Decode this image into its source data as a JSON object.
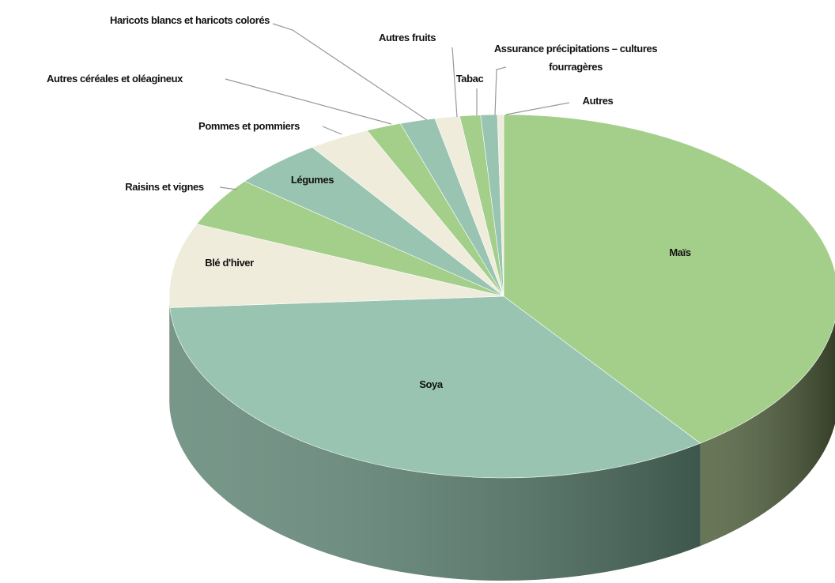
{
  "chart_data": {
    "type": "pie3d",
    "categories": [
      "Maïs",
      "Soya",
      "Blé d'hiver",
      "Raisins et vignes",
      "Légumes",
      "Pommes et pommiers",
      "Autres céréales et oléagineux",
      "Haricots blancs et haricots colorés",
      "Autres fruits",
      "Tabac",
      "Assurance précipitations – cultures fourragères",
      "Autres"
    ],
    "values": [
      40,
      34,
      7.5,
      4.4,
      4.4,
      3,
      1.7,
      1.7,
      1.2,
      1,
      0.8,
      0.3
    ],
    "colors": [
      "#a3cf8a",
      "#99c4b2",
      "#f0ecdc",
      "#a3cf8a",
      "#99c4b2",
      "#f0ecdc",
      "#a3cf8a",
      "#99c4b2",
      "#f0ecdc",
      "#a3cf8a",
      "#99c4b2",
      "#f0ecdc"
    ],
    "side_colors": [
      "#4e5e3a",
      "#5f8575",
      "#b4b09e",
      "#6a8a55",
      "#5f8575",
      "#b4b09e",
      "#6a8a55",
      "#5f8575",
      "#b4b09e",
      "#6a8a55",
      "#5f8575",
      "#b4b09e"
    ]
  }
}
